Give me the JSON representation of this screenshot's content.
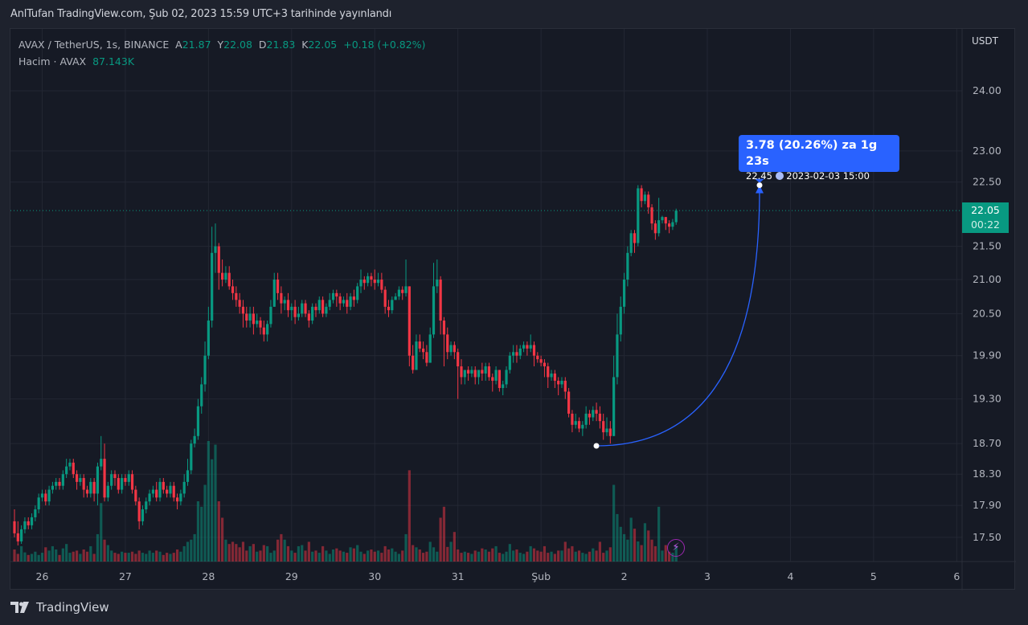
{
  "published": "AnlTufan TradingView.com, Şub 02, 2023 15:59 UTC+3 tarihinde yayınlandı",
  "legend": {
    "symbol": "AVAX / TetherUS, 1s, BINANCE",
    "open_label": "A",
    "open": "21.87",
    "high_label": "Y",
    "high": "22.08",
    "low_label": "D",
    "low": "21.83",
    "close_label": "K",
    "close": "22.05",
    "change": "+0.18 (+0.82%)",
    "volume_label": "Hacim · AVAX",
    "volume": "87.143K"
  },
  "price_axis": {
    "currency": "USDT"
  },
  "last_price": {
    "price": "22.05",
    "countdown": "00:22",
    "color": "#089981"
  },
  "measure": {
    "line1": "3.78 (20.26%) za 1g 23s",
    "price": "22.45",
    "date": "2023-02-03  15:00",
    "color": "#2962ff",
    "start_price": 18.67,
    "end_price": 22.45
  },
  "icons": {
    "clock": "clock-icon",
    "bolt": "lightning-icon",
    "logo": "tradingview-logo"
  },
  "logo_text": "TradingView",
  "colors": {
    "up": "#089981",
    "down": "#f23645",
    "background": "#161a25",
    "grid": "#232733"
  },
  "chart_data": {
    "type": "candlestick",
    "interval": "1h",
    "y_scale": "log",
    "ylim": [
      17.35,
      24.9
    ],
    "grid": true,
    "y_ticks": [
      24.0,
      23.0,
      22.5,
      21.5,
      21.0,
      20.5,
      19.9,
      19.3,
      18.7,
      18.3,
      17.9,
      17.5
    ],
    "y_tick_labels": [
      "24.00",
      "23.00",
      "22.50",
      "21.50",
      "21.00",
      "20.50",
      "19.90",
      "19.30",
      "18.70",
      "18.30",
      "17.90",
      "17.50"
    ],
    "x_tick_labels": [
      "26",
      "27",
      "28",
      "29",
      "30",
      "31",
      "Şub",
      "2",
      "3",
      "4",
      "5",
      "6"
    ],
    "ohlc": [
      [
        17.7,
        17.85,
        17.5,
        17.55
      ],
      [
        17.55,
        17.7,
        17.4,
        17.45
      ],
      [
        17.45,
        17.65,
        17.42,
        17.6
      ],
      [
        17.6,
        17.75,
        17.55,
        17.7
      ],
      [
        17.7,
        17.75,
        17.6,
        17.65
      ],
      [
        17.65,
        17.8,
        17.6,
        17.75
      ],
      [
        17.75,
        17.9,
        17.7,
        17.85
      ],
      [
        17.85,
        18.05,
        17.8,
        18.0
      ],
      [
        18.0,
        18.1,
        17.95,
        18.05
      ],
      [
        18.05,
        18.1,
        17.9,
        17.95
      ],
      [
        17.95,
        18.15,
        17.9,
        18.1
      ],
      [
        18.1,
        18.2,
        18.05,
        18.15
      ],
      [
        18.15,
        18.25,
        18.1,
        18.2
      ],
      [
        18.2,
        18.25,
        18.1,
        18.15
      ],
      [
        18.15,
        18.35,
        18.1,
        18.3
      ],
      [
        18.3,
        18.5,
        18.25,
        18.4
      ],
      [
        18.4,
        18.5,
        18.35,
        18.45
      ],
      [
        18.45,
        18.5,
        18.25,
        18.3
      ],
      [
        18.3,
        18.35,
        18.1,
        18.2
      ],
      [
        18.2,
        18.3,
        18.15,
        18.25
      ],
      [
        18.25,
        18.3,
        18.0,
        18.1
      ],
      [
        18.1,
        18.15,
        18.0,
        18.05
      ],
      [
        18.05,
        18.25,
        18.0,
        18.2
      ],
      [
        18.2,
        18.25,
        17.95,
        18.05
      ],
      [
        18.05,
        18.45,
        17.9,
        18.4
      ],
      [
        18.4,
        18.8,
        18.35,
        18.5
      ],
      [
        18.5,
        18.7,
        17.95,
        18.0
      ],
      [
        18.0,
        18.2,
        17.95,
        18.15
      ],
      [
        18.15,
        18.35,
        18.1,
        18.3
      ],
      [
        18.3,
        18.35,
        18.15,
        18.25
      ],
      [
        18.25,
        18.3,
        18.05,
        18.1
      ],
      [
        18.1,
        18.3,
        18.05,
        18.25
      ],
      [
        18.25,
        18.3,
        18.15,
        18.2
      ],
      [
        18.2,
        18.35,
        18.15,
        18.3
      ],
      [
        18.3,
        18.35,
        18.05,
        18.1
      ],
      [
        18.1,
        18.15,
        17.9,
        17.95
      ],
      [
        17.95,
        18.0,
        17.6,
        17.7
      ],
      [
        17.7,
        17.9,
        17.65,
        17.85
      ],
      [
        17.85,
        18.0,
        17.8,
        17.95
      ],
      [
        17.95,
        18.1,
        17.9,
        18.05
      ],
      [
        18.05,
        18.15,
        18.0,
        18.1
      ],
      [
        18.1,
        18.2,
        17.95,
        18.0
      ],
      [
        18.0,
        18.25,
        17.95,
        18.2
      ],
      [
        18.2,
        18.25,
        18.05,
        18.1
      ],
      [
        18.1,
        18.15,
        18.0,
        18.05
      ],
      [
        18.05,
        18.2,
        18.0,
        18.15
      ],
      [
        18.15,
        18.2,
        17.95,
        18.0
      ],
      [
        18.0,
        18.05,
        17.85,
        17.95
      ],
      [
        17.95,
        18.1,
        17.9,
        18.05
      ],
      [
        18.05,
        18.3,
        18.0,
        18.2
      ],
      [
        18.2,
        18.5,
        18.15,
        18.35
      ],
      [
        18.35,
        18.75,
        18.3,
        18.7
      ],
      [
        18.7,
        18.9,
        18.65,
        18.8
      ],
      [
        18.8,
        19.3,
        18.75,
        19.2
      ],
      [
        19.2,
        19.6,
        19.1,
        19.5
      ],
      [
        19.5,
        20.1,
        19.4,
        19.9
      ],
      [
        19.9,
        20.6,
        19.85,
        20.4
      ],
      [
        20.4,
        21.8,
        20.3,
        21.4
      ],
      [
        21.4,
        21.85,
        21.1,
        21.5
      ],
      [
        21.5,
        21.55,
        20.85,
        21.1
      ],
      [
        21.1,
        21.3,
        20.9,
        21.0
      ],
      [
        21.0,
        21.2,
        20.95,
        21.1
      ],
      [
        21.1,
        21.2,
        20.85,
        20.9
      ],
      [
        20.9,
        21.0,
        20.7,
        20.8
      ],
      [
        20.8,
        20.9,
        20.6,
        20.7
      ],
      [
        20.7,
        20.8,
        20.5,
        20.6
      ],
      [
        20.6,
        20.7,
        20.3,
        20.5
      ],
      [
        20.5,
        20.6,
        20.3,
        20.4
      ],
      [
        20.4,
        20.6,
        20.3,
        20.5
      ],
      [
        20.5,
        20.6,
        20.2,
        20.35
      ],
      [
        20.35,
        20.5,
        20.3,
        20.4
      ],
      [
        20.4,
        20.45,
        20.2,
        20.3
      ],
      [
        20.3,
        20.4,
        20.1,
        20.2
      ],
      [
        20.2,
        20.4,
        20.1,
        20.35
      ],
      [
        20.35,
        20.7,
        20.3,
        20.6
      ],
      [
        20.6,
        21.1,
        20.6,
        21.0
      ],
      [
        21.0,
        21.1,
        20.7,
        20.8
      ],
      [
        20.8,
        20.9,
        20.5,
        20.65
      ],
      [
        20.65,
        20.75,
        20.55,
        20.7
      ],
      [
        20.7,
        20.8,
        20.45,
        20.55
      ],
      [
        20.55,
        20.65,
        20.4,
        20.6
      ],
      [
        20.6,
        20.7,
        20.35,
        20.45
      ],
      [
        20.45,
        20.6,
        20.4,
        20.5
      ],
      [
        20.5,
        20.7,
        20.45,
        20.65
      ],
      [
        20.65,
        20.7,
        20.45,
        20.5
      ],
      [
        20.5,
        20.55,
        20.3,
        20.4
      ],
      [
        20.4,
        20.65,
        20.35,
        20.6
      ],
      [
        20.6,
        20.65,
        20.45,
        20.55
      ],
      [
        20.55,
        20.75,
        20.5,
        20.7
      ],
      [
        20.7,
        20.75,
        20.45,
        20.5
      ],
      [
        20.5,
        20.65,
        20.45,
        20.6
      ],
      [
        20.6,
        20.8,
        20.55,
        20.7
      ],
      [
        20.7,
        20.85,
        20.65,
        20.8
      ],
      [
        20.8,
        20.85,
        20.6,
        20.75
      ],
      [
        20.75,
        20.8,
        20.55,
        20.65
      ],
      [
        20.65,
        20.75,
        20.6,
        20.7
      ],
      [
        20.7,
        20.8,
        20.5,
        20.6
      ],
      [
        20.6,
        20.8,
        20.55,
        20.75
      ],
      [
        20.75,
        20.85,
        20.6,
        20.7
      ],
      [
        20.7,
        20.95,
        20.65,
        20.9
      ],
      [
        20.9,
        21.15,
        20.8,
        21.0
      ],
      [
        21.0,
        21.05,
        20.85,
        20.95
      ],
      [
        20.95,
        21.1,
        20.9,
        21.05
      ],
      [
        21.05,
        21.1,
        20.9,
        21.0
      ],
      [
        21.0,
        21.15,
        20.85,
        20.95
      ],
      [
        20.95,
        21.1,
        20.9,
        21.0
      ],
      [
        21.0,
        21.1,
        20.8,
        20.85
      ],
      [
        20.85,
        20.9,
        20.5,
        20.6
      ],
      [
        20.6,
        20.7,
        20.45,
        20.55
      ],
      [
        20.55,
        20.75,
        20.5,
        20.7
      ],
      [
        20.7,
        20.8,
        20.7,
        20.75
      ],
      [
        20.75,
        20.9,
        20.7,
        20.85
      ],
      [
        20.85,
        20.9,
        20.7,
        20.8
      ],
      [
        20.8,
        21.3,
        20.75,
        20.9
      ],
      [
        20.9,
        20.9,
        19.75,
        19.9
      ],
      [
        19.9,
        20.05,
        19.65,
        19.7
      ],
      [
        19.7,
        20.2,
        19.7,
        20.1
      ],
      [
        20.1,
        20.2,
        19.95,
        20.0
      ],
      [
        20.0,
        20.1,
        19.85,
        19.95
      ],
      [
        19.95,
        20.05,
        19.75,
        19.8
      ],
      [
        19.8,
        20.3,
        19.8,
        20.2
      ],
      [
        20.2,
        21.25,
        20.15,
        20.9
      ],
      [
        20.9,
        21.3,
        20.8,
        21.0
      ],
      [
        21.0,
        21.05,
        20.2,
        20.4
      ],
      [
        20.4,
        20.45,
        19.75,
        20.2
      ],
      [
        20.2,
        20.3,
        19.85,
        19.95
      ],
      [
        19.95,
        20.1,
        19.9,
        20.05
      ],
      [
        20.05,
        20.1,
        19.85,
        19.95
      ],
      [
        19.95,
        20.0,
        19.3,
        19.75
      ],
      [
        19.75,
        19.85,
        19.5,
        19.6
      ],
      [
        19.6,
        19.7,
        19.5,
        19.7
      ],
      [
        19.7,
        19.75,
        19.55,
        19.65
      ],
      [
        19.65,
        19.75,
        19.6,
        19.7
      ],
      [
        19.7,
        19.75,
        19.5,
        19.6
      ],
      [
        19.6,
        19.7,
        19.5,
        19.7
      ],
      [
        19.7,
        19.8,
        19.55,
        19.65
      ],
      [
        19.65,
        19.8,
        19.55,
        19.75
      ],
      [
        19.75,
        19.8,
        19.55,
        19.6
      ],
      [
        19.6,
        19.65,
        19.4,
        19.55
      ],
      [
        19.55,
        19.75,
        19.5,
        19.7
      ],
      [
        19.7,
        19.7,
        19.4,
        19.45
      ],
      [
        19.45,
        19.55,
        19.35,
        19.5
      ],
      [
        19.5,
        19.75,
        19.45,
        19.7
      ],
      [
        19.7,
        19.95,
        19.65,
        19.9
      ],
      [
        19.9,
        20.05,
        19.8,
        19.95
      ],
      [
        19.95,
        20.05,
        19.8,
        19.9
      ],
      [
        19.9,
        20.05,
        19.85,
        20.0
      ],
      [
        20.0,
        20.1,
        19.95,
        20.05
      ],
      [
        20.05,
        20.1,
        19.9,
        20.0
      ],
      [
        20.0,
        20.2,
        19.95,
        20.05
      ],
      [
        20.05,
        20.1,
        19.75,
        19.9
      ],
      [
        19.9,
        19.95,
        19.8,
        19.85
      ],
      [
        19.85,
        19.9,
        19.75,
        19.8
      ],
      [
        19.8,
        19.85,
        19.6,
        19.75
      ],
      [
        19.75,
        19.8,
        19.45,
        19.6
      ],
      [
        19.6,
        19.7,
        19.55,
        19.65
      ],
      [
        19.65,
        19.7,
        19.45,
        19.55
      ],
      [
        19.55,
        19.6,
        19.35,
        19.5
      ],
      [
        19.5,
        19.6,
        19.45,
        19.55
      ],
      [
        19.55,
        19.6,
        19.3,
        19.4
      ],
      [
        19.4,
        19.45,
        19.05,
        19.1
      ],
      [
        19.1,
        19.15,
        18.85,
        18.95
      ],
      [
        18.95,
        19.1,
        18.9,
        19.0
      ],
      [
        19.0,
        19.05,
        18.85,
        18.9
      ],
      [
        18.9,
        19.0,
        18.8,
        18.95
      ],
      [
        18.95,
        19.2,
        18.9,
        19.1
      ],
      [
        19.1,
        19.15,
        18.95,
        19.05
      ],
      [
        19.05,
        19.2,
        19.0,
        19.15
      ],
      [
        19.15,
        19.25,
        19.0,
        19.1
      ],
      [
        19.1,
        19.2,
        18.9,
        19.0
      ],
      [
        19.0,
        19.1,
        18.75,
        18.85
      ],
      [
        18.85,
        19.05,
        18.8,
        18.9
      ],
      [
        18.9,
        19.0,
        18.7,
        18.8
      ],
      [
        18.8,
        19.9,
        18.8,
        19.6
      ],
      [
        19.6,
        20.5,
        19.5,
        20.2
      ],
      [
        20.2,
        20.75,
        20.1,
        20.6
      ],
      [
        20.6,
        21.1,
        20.5,
        21.0
      ],
      [
        21.0,
        21.5,
        20.9,
        21.4
      ],
      [
        21.4,
        21.75,
        21.35,
        21.7
      ],
      [
        21.7,
        21.75,
        21.4,
        21.55
      ],
      [
        21.55,
        22.45,
        21.5,
        22.4
      ],
      [
        22.4,
        22.45,
        22.1,
        22.2
      ],
      [
        22.2,
        22.35,
        22.15,
        22.3
      ],
      [
        22.3,
        22.35,
        22.0,
        22.1
      ],
      [
        22.1,
        22.15,
        21.75,
        21.85
      ],
      [
        21.85,
        21.9,
        21.6,
        21.7
      ],
      [
        21.7,
        22.25,
        21.65,
        21.9
      ],
      [
        21.9,
        21.97,
        21.85,
        21.95
      ],
      [
        21.95,
        21.95,
        21.75,
        21.85
      ],
      [
        21.85,
        21.9,
        21.7,
        21.8
      ],
      [
        21.8,
        21.92,
        21.75,
        21.87
      ],
      [
        21.87,
        22.08,
        21.83,
        22.05
      ]
    ],
    "volume_k": [
      66,
      42,
      84,
      50,
      36,
      42,
      54,
      36,
      48,
      78,
      60,
      84,
      66,
      36,
      72,
      96,
      48,
      54,
      60,
      42,
      66,
      54,
      84,
      42,
      150,
      320,
      120,
      90,
      60,
      48,
      42,
      54,
      48,
      48,
      54,
      42,
      60,
      48,
      42,
      60,
      48,
      60,
      54,
      36,
      48,
      42,
      48,
      66,
      54,
      84,
      108,
      120,
      150,
      330,
      300,
      420,
      660,
      560,
      640,
      330,
      240,
      120,
      96,
      108,
      96,
      78,
      108,
      60,
      84,
      96,
      54,
      60,
      90,
      84,
      48,
      60,
      120,
      150,
      120,
      84,
      60,
      48,
      84,
      90,
      60,
      108,
      54,
      60,
      48,
      84,
      60,
      42,
      66,
      72,
      60,
      54,
      48,
      78,
      72,
      90,
      54,
      42,
      60,
      66,
      54,
      60,
      48,
      84,
      66,
      72,
      54,
      42,
      60,
      150,
      500,
      90,
      78,
      66,
      48,
      54,
      108,
      78,
      54,
      240,
      300,
      80,
      108,
      162,
      66,
      48,
      54,
      48,
      42,
      60,
      54,
      72,
      66,
      54,
      72,
      84,
      48,
      42,
      54,
      96,
      60,
      66,
      48,
      42,
      54,
      84,
      72,
      60,
      54,
      84,
      48,
      54,
      42,
      60,
      60,
      108,
      72,
      84,
      54,
      60,
      48,
      42,
      54,
      72,
      60,
      108,
      48,
      60,
      78,
      420,
      260,
      190,
      150,
      120,
      240,
      180,
      110,
      90,
      210,
      170,
      120,
      84,
      300,
      60,
      90,
      54,
      48,
      87.143
    ]
  }
}
